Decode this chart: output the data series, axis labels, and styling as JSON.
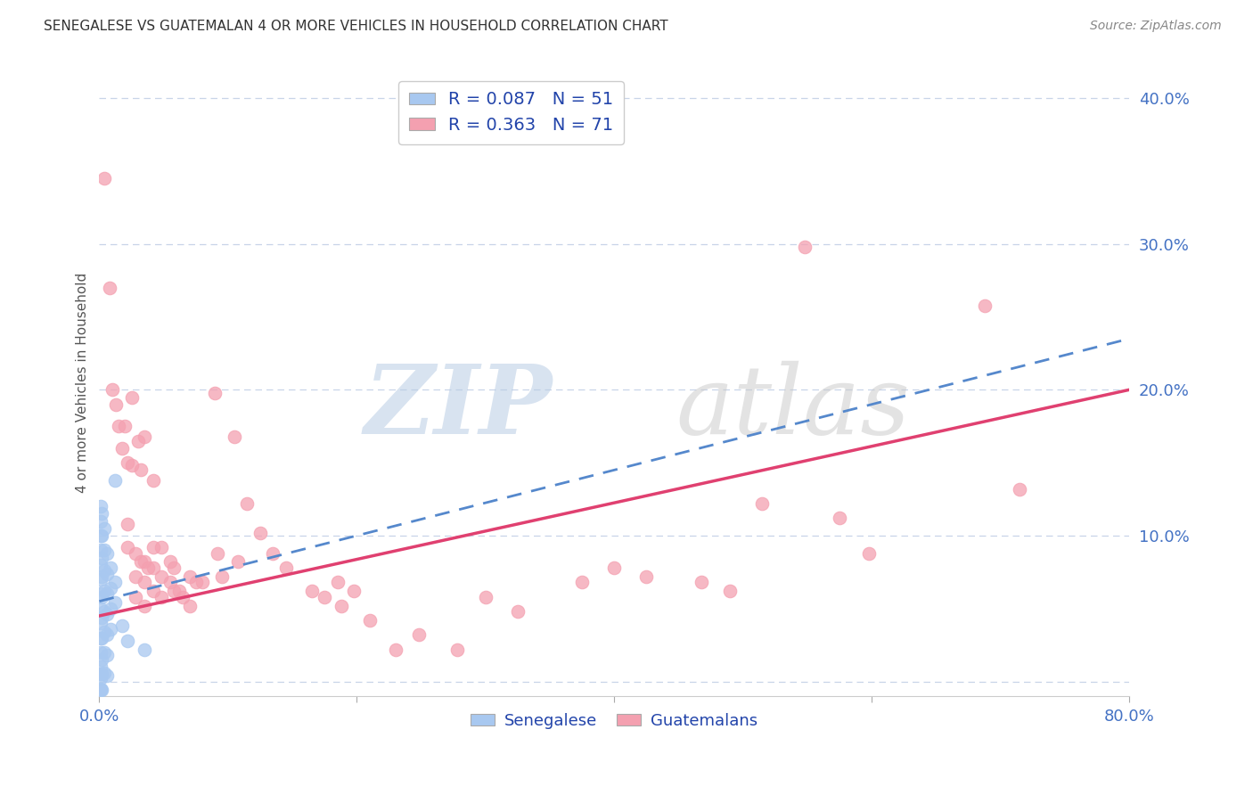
{
  "title": "SENEGALESE VS GUATEMALAN 4 OR MORE VEHICLES IN HOUSEHOLD CORRELATION CHART",
  "source": "Source: ZipAtlas.com",
  "ylabel": "4 or more Vehicles in Household",
  "watermark_zip": "ZIP",
  "watermark_atlas": "atlas",
  "xlim": [
    0.0,
    0.8
  ],
  "ylim": [
    -0.01,
    0.42
  ],
  "yticks": [
    0.0,
    0.1,
    0.2,
    0.3,
    0.4
  ],
  "ytick_labels": [
    "",
    "10.0%",
    "20.0%",
    "30.0%",
    "40.0%"
  ],
  "xticks": [
    0.0,
    0.2,
    0.4,
    0.6,
    0.8
  ],
  "xtick_labels_show": [
    "0.0%",
    "",
    "",
    "",
    "80.0%"
  ],
  "legend_r1": "R = 0.087   N = 51",
  "legend_r2": "R = 0.363   N = 71",
  "legend_label1": "Senegalese",
  "legend_label2": "Guatemalans",
  "senegalese_color": "#a8c8f0",
  "guatemalan_color": "#f4a0b0",
  "trendline_senegalese_color": "#5588cc",
  "trendline_guatemalan_color": "#e04070",
  "grid_color": "#c8d4e8",
  "background_color": "#ffffff",
  "senegalese_points": [
    [
      0.001,
      0.12
    ],
    [
      0.001,
      0.11
    ],
    [
      0.001,
      0.1
    ],
    [
      0.001,
      0.09
    ],
    [
      0.001,
      0.08
    ],
    [
      0.001,
      0.07
    ],
    [
      0.001,
      0.06
    ],
    [
      0.001,
      0.05
    ],
    [
      0.001,
      0.04
    ],
    [
      0.001,
      0.03
    ],
    [
      0.001,
      0.02
    ],
    [
      0.001,
      0.01
    ],
    [
      0.001,
      0.005
    ],
    [
      0.001,
      -0.005
    ],
    [
      0.002,
      0.115
    ],
    [
      0.002,
      0.1
    ],
    [
      0.002,
      0.085
    ],
    [
      0.002,
      0.072
    ],
    [
      0.002,
      0.058
    ],
    [
      0.002,
      0.044
    ],
    [
      0.002,
      0.03
    ],
    [
      0.002,
      0.015
    ],
    [
      0.002,
      0.005
    ],
    [
      0.004,
      0.105
    ],
    [
      0.004,
      0.09
    ],
    [
      0.004,
      0.076
    ],
    [
      0.004,
      0.062
    ],
    [
      0.004,
      0.048
    ],
    [
      0.004,
      0.034
    ],
    [
      0.004,
      0.02
    ],
    [
      0.004,
      0.006
    ],
    [
      0.006,
      0.088
    ],
    [
      0.006,
      0.074
    ],
    [
      0.006,
      0.06
    ],
    [
      0.006,
      0.046
    ],
    [
      0.006,
      0.032
    ],
    [
      0.006,
      0.018
    ],
    [
      0.006,
      0.004
    ],
    [
      0.009,
      0.078
    ],
    [
      0.009,
      0.064
    ],
    [
      0.009,
      0.05
    ],
    [
      0.009,
      0.036
    ],
    [
      0.012,
      0.138
    ],
    [
      0.012,
      0.068
    ],
    [
      0.012,
      0.054
    ],
    [
      0.018,
      0.038
    ],
    [
      0.022,
      0.028
    ],
    [
      0.035,
      0.022
    ],
    [
      0.001,
      -0.006
    ],
    [
      0.002,
      -0.006
    ],
    [
      0.001,
      0.002
    ]
  ],
  "guatemalan_points": [
    [
      0.004,
      0.345
    ],
    [
      0.008,
      0.27
    ],
    [
      0.01,
      0.2
    ],
    [
      0.013,
      0.19
    ],
    [
      0.015,
      0.175
    ],
    [
      0.018,
      0.16
    ],
    [
      0.02,
      0.175
    ],
    [
      0.022,
      0.15
    ],
    [
      0.022,
      0.108
    ],
    [
      0.022,
      0.092
    ],
    [
      0.025,
      0.195
    ],
    [
      0.025,
      0.148
    ],
    [
      0.028,
      0.088
    ],
    [
      0.028,
      0.072
    ],
    [
      0.028,
      0.058
    ],
    [
      0.03,
      0.165
    ],
    [
      0.032,
      0.145
    ],
    [
      0.032,
      0.082
    ],
    [
      0.035,
      0.168
    ],
    [
      0.035,
      0.082
    ],
    [
      0.035,
      0.068
    ],
    [
      0.035,
      0.052
    ],
    [
      0.038,
      0.078
    ],
    [
      0.042,
      0.138
    ],
    [
      0.042,
      0.092
    ],
    [
      0.042,
      0.078
    ],
    [
      0.042,
      0.062
    ],
    [
      0.048,
      0.092
    ],
    [
      0.048,
      0.072
    ],
    [
      0.048,
      0.058
    ],
    [
      0.055,
      0.082
    ],
    [
      0.055,
      0.068
    ],
    [
      0.058,
      0.078
    ],
    [
      0.058,
      0.062
    ],
    [
      0.062,
      0.062
    ],
    [
      0.065,
      0.058
    ],
    [
      0.07,
      0.072
    ],
    [
      0.07,
      0.052
    ],
    [
      0.075,
      0.068
    ],
    [
      0.08,
      0.068
    ],
    [
      0.09,
      0.198
    ],
    [
      0.092,
      0.088
    ],
    [
      0.095,
      0.072
    ],
    [
      0.105,
      0.168
    ],
    [
      0.108,
      0.082
    ],
    [
      0.115,
      0.122
    ],
    [
      0.125,
      0.102
    ],
    [
      0.135,
      0.088
    ],
    [
      0.145,
      0.078
    ],
    [
      0.165,
      0.062
    ],
    [
      0.175,
      0.058
    ],
    [
      0.185,
      0.068
    ],
    [
      0.188,
      0.052
    ],
    [
      0.198,
      0.062
    ],
    [
      0.21,
      0.042
    ],
    [
      0.23,
      0.022
    ],
    [
      0.248,
      0.032
    ],
    [
      0.278,
      0.022
    ],
    [
      0.3,
      0.058
    ],
    [
      0.325,
      0.048
    ],
    [
      0.375,
      0.068
    ],
    [
      0.4,
      0.078
    ],
    [
      0.425,
      0.072
    ],
    [
      0.468,
      0.068
    ],
    [
      0.49,
      0.062
    ],
    [
      0.515,
      0.122
    ],
    [
      0.548,
      0.298
    ],
    [
      0.575,
      0.112
    ],
    [
      0.598,
      0.088
    ],
    [
      0.688,
      0.258
    ],
    [
      0.715,
      0.132
    ]
  ]
}
